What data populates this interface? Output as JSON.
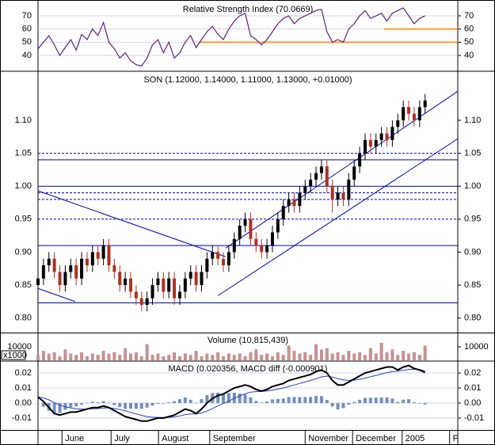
{
  "chart_data": [
    {
      "type": "line",
      "title": "Relative Strength Index (70.0669)",
      "color": "#602080",
      "values": [
        45,
        50,
        55,
        48,
        40,
        46,
        52,
        44,
        56,
        52,
        60,
        55,
        65,
        50,
        45,
        38,
        42,
        36,
        33,
        32,
        38,
        48,
        52,
        42,
        50,
        38,
        42,
        50,
        55,
        46,
        52,
        58,
        62,
        56,
        52,
        60,
        66,
        70,
        72,
        55,
        52,
        48,
        52,
        58,
        64,
        68,
        70,
        64,
        68,
        70,
        72,
        74,
        75,
        58,
        50,
        52,
        50,
        60,
        64,
        70,
        74,
        68,
        70,
        72,
        66,
        72,
        74,
        76,
        70,
        64,
        68,
        70.0669
      ],
      "ylim": [
        29.2,
        80.2
      ],
      "yticks": [
        40,
        50,
        60,
        70
      ],
      "grid": true,
      "hlines": [
        {
          "value": 60,
          "from": 63.5,
          "color": "#ff9933"
        },
        {
          "value": 50,
          "from": 29.5,
          "color": "#ff9933"
        }
      ]
    },
    {
      "type": "candlestick",
      "title": "SON (1.12000, 1.14000, 1.11000, 1.13000, +0.01000)",
      "up_color": "#000000",
      "down_color": "#b03020",
      "open": [
        0.85,
        0.86,
        0.88,
        0.89,
        0.87,
        0.85,
        0.87,
        0.88,
        0.86,
        0.89,
        0.88,
        0.9,
        0.89,
        0.91,
        0.88,
        0.87,
        0.85,
        0.86,
        0.84,
        0.83,
        0.82,
        0.83,
        0.85,
        0.86,
        0.84,
        0.86,
        0.83,
        0.84,
        0.86,
        0.87,
        0.85,
        0.87,
        0.89,
        0.9,
        0.89,
        0.88,
        0.9,
        0.92,
        0.94,
        0.95,
        0.92,
        0.91,
        0.9,
        0.91,
        0.93,
        0.95,
        0.97,
        0.98,
        0.97,
        0.99,
        1.0,
        1.01,
        1.02,
        1.03,
        1.0,
        0.98,
        0.99,
        0.98,
        1.01,
        1.03,
        1.05,
        1.07,
        1.06,
        1.07,
        1.08,
        1.07,
        1.09,
        1.1,
        1.12,
        1.11,
        1.1,
        1.12
      ],
      "high": [
        0.87,
        0.89,
        0.9,
        0.9,
        0.88,
        0.88,
        0.89,
        0.89,
        0.9,
        0.9,
        0.91,
        0.91,
        0.92,
        0.92,
        0.89,
        0.88,
        0.87,
        0.87,
        0.85,
        0.84,
        0.84,
        0.86,
        0.87,
        0.87,
        0.87,
        0.87,
        0.85,
        0.87,
        0.88,
        0.88,
        0.88,
        0.9,
        0.91,
        0.91,
        0.9,
        0.91,
        0.93,
        0.95,
        0.96,
        0.96,
        0.93,
        0.92,
        0.92,
        0.94,
        0.96,
        0.98,
        0.99,
        0.99,
        1.0,
        1.01,
        1.02,
        1.03,
        1.04,
        1.04,
        1.01,
        1.0,
        1.0,
        1.02,
        1.04,
        1.06,
        1.08,
        1.08,
        1.08,
        1.09,
        1.09,
        1.1,
        1.11,
        1.13,
        1.13,
        1.12,
        1.13,
        1.14
      ],
      "low": [
        0.84,
        0.85,
        0.87,
        0.86,
        0.84,
        0.84,
        0.86,
        0.85,
        0.85,
        0.87,
        0.87,
        0.88,
        0.88,
        0.87,
        0.86,
        0.84,
        0.84,
        0.83,
        0.82,
        0.81,
        0.81,
        0.82,
        0.84,
        0.83,
        0.83,
        0.82,
        0.82,
        0.83,
        0.85,
        0.84,
        0.84,
        0.86,
        0.88,
        0.88,
        0.87,
        0.87,
        0.89,
        0.91,
        0.93,
        0.91,
        0.9,
        0.89,
        0.89,
        0.9,
        0.92,
        0.94,
        0.96,
        0.96,
        0.96,
        0.98,
        0.99,
        1.0,
        1.01,
        0.99,
        0.96,
        0.97,
        0.97,
        0.97,
        1.0,
        1.02,
        1.04,
        1.05,
        1.05,
        1.06,
        1.06,
        1.06,
        1.08,
        1.09,
        1.1,
        1.09,
        1.09,
        1.11
      ],
      "close": [
        0.86,
        0.88,
        0.89,
        0.87,
        0.85,
        0.87,
        0.88,
        0.86,
        0.89,
        0.88,
        0.9,
        0.89,
        0.91,
        0.88,
        0.87,
        0.85,
        0.86,
        0.84,
        0.83,
        0.82,
        0.83,
        0.85,
        0.86,
        0.84,
        0.86,
        0.83,
        0.84,
        0.86,
        0.87,
        0.85,
        0.87,
        0.89,
        0.9,
        0.89,
        0.88,
        0.9,
        0.92,
        0.94,
        0.95,
        0.92,
        0.91,
        0.9,
        0.91,
        0.93,
        0.95,
        0.97,
        0.98,
        0.97,
        0.99,
        1.0,
        1.01,
        1.02,
        1.03,
        1.0,
        0.98,
        0.99,
        0.98,
        1.01,
        1.03,
        1.05,
        1.07,
        1.06,
        1.07,
        1.08,
        1.07,
        1.09,
        1.1,
        1.12,
        1.11,
        1.1,
        1.12,
        1.13
      ],
      "ylim": [
        0.778,
        1.172
      ],
      "yticks": [
        {
          "value": 0.8,
          "label": "0.80"
        },
        0.85,
        {
          "value": 0.9,
          "label": "0.90"
        },
        0.95,
        {
          "value": 1,
          "label": "1.00"
        },
        1.05,
        {
          "value": 1.1,
          "label": "1.10"
        }
      ],
      "grid": false,
      "line_color": "#0000c0",
      "hlines": [
        {
          "value": 1.05,
          "dashed": true
        },
        {
          "value": 1.04,
          "dashed": false
        },
        {
          "value": 1.0,
          "dashed": false
        },
        {
          "value": 0.99,
          "dashed": true
        },
        {
          "value": 0.98,
          "dashed": true
        },
        {
          "value": 0.95,
          "dashed": true
        },
        {
          "value": 0.91,
          "dashed": false
        },
        {
          "value": 0.823,
          "dashed": false
        }
      ],
      "trendlines": [
        {
          "x": [
            0,
            34.4
          ],
          "y": [
            0.993,
            0.893
          ]
        },
        {
          "x": [
            0,
            6.8
          ],
          "y": [
            0.845,
            0.825
          ]
        },
        {
          "x": [
            34.4,
            77
          ],
          "y": [
            0.906,
            1.144
          ]
        },
        {
          "x": [
            33,
            77
          ],
          "y": [
            0.834,
            1.072
          ]
        }
      ]
    },
    {
      "type": "bar",
      "title": "Volume (10,815,439)",
      "unit": "x1000",
      "color": "#c89090",
      "values": [
        4000,
        7000,
        5000,
        6000,
        3000,
        8000,
        5000,
        4000,
        6000,
        3000,
        5000,
        4000,
        7000,
        5000,
        6000,
        4000,
        9000,
        5000,
        6000,
        3000,
        12000,
        4000,
        5000,
        3000,
        4000,
        6000,
        3000,
        5000,
        4000,
        7000,
        3000,
        5000,
        4000,
        6000,
        3000,
        5000,
        4000,
        5000,
        3000,
        6000,
        8000,
        4000,
        5000,
        3000,
        6000,
        4000,
        11000,
        7000,
        5000,
        6000,
        4000,
        12000,
        8000,
        9000,
        5000,
        6000,
        4000,
        7000,
        5000,
        6000,
        4000,
        9000,
        5000,
        13000,
        6000,
        8000,
        4000,
        7000,
        5000,
        6000,
        4000,
        10815.439
      ],
      "ylim": [
        0,
        20000
      ],
      "yticks": [
        10000
      ],
      "grid": false
    },
    {
      "type": "macd",
      "title": "MACD (0.020356, MACD diff (-0.000901)",
      "macd": {
        "color": "#000000",
        "values": [
          0.004,
          0.001,
          -0.003,
          -0.007,
          -0.008,
          -0.007,
          -0.006,
          -0.006,
          -0.005,
          -0.004,
          -0.003,
          -0.003,
          -0.002,
          -0.003,
          -0.005,
          -0.007,
          -0.009,
          -0.01,
          -0.011,
          -0.012,
          -0.012,
          -0.011,
          -0.01,
          -0.01,
          -0.009,
          -0.008,
          -0.006,
          -0.004,
          -0.005,
          -0.007,
          -0.004,
          0.0,
          0.003,
          0.005,
          0.006,
          0.008,
          0.01,
          0.011,
          0.012,
          0.011,
          0.009,
          0.008,
          0.009,
          0.011,
          0.012,
          0.013,
          0.015,
          0.016,
          0.017,
          0.018,
          0.019,
          0.021,
          0.022,
          0.02,
          0.015,
          0.012,
          0.012,
          0.014,
          0.016,
          0.018,
          0.02,
          0.021,
          0.022,
          0.023,
          0.024,
          0.024,
          0.022,
          0.024,
          0.025,
          0.023,
          0.022,
          0.020356
        ]
      },
      "signal": {
        "color": "#2040c0",
        "values": [
          0.004,
          0.0034,
          0.0021,
          0.0003,
          -0.0014,
          -0.0025,
          -0.0032,
          -0.0038,
          -0.004,
          -0.004,
          -0.0038,
          -0.0036,
          -0.0033,
          -0.0032,
          -0.0036,
          -0.0043,
          -0.0052,
          -0.0062,
          -0.0072,
          -0.0082,
          -0.009,
          -0.0094,
          -0.0095,
          -0.0096,
          -0.0095,
          -0.0092,
          -0.0086,
          -0.0077,
          -0.0072,
          -0.0072,
          -0.0066,
          -0.0053,
          -0.0036,
          -0.0019,
          -0.0003,
          0.0014,
          0.0031,
          0.0047,
          0.0062,
          0.0072,
          0.0076,
          0.0077,
          0.008,
          0.0086,
          0.0093,
          0.01,
          0.011,
          0.012,
          0.013,
          0.014,
          0.015,
          0.0162,
          0.0174,
          0.0179,
          0.0173,
          0.0162,
          0.0154,
          0.0151,
          0.0153,
          0.0158,
          0.0166,
          0.0175,
          0.0184,
          0.0193,
          0.0202,
          0.021,
          0.0212,
          0.0218,
          0.0224,
          0.0225,
          0.0224,
          0.021257
        ]
      },
      "hist": {
        "color": "#7090c0",
        "values": [
          0.0,
          -0.0024,
          -0.0051,
          -0.0073,
          -0.0066,
          -0.0045,
          -0.0028,
          -0.0022,
          -0.001,
          0.0,
          0.0008,
          0.0006,
          0.0013,
          0.0002,
          -0.0014,
          -0.0027,
          -0.0038,
          -0.0038,
          -0.0038,
          -0.0038,
          -0.003,
          -0.0016,
          -0.0005,
          -0.0004,
          0.0005,
          0.0012,
          0.0026,
          0.0037,
          0.0022,
          0.0002,
          0.0026,
          0.0053,
          0.0066,
          0.0069,
          0.0063,
          0.0066,
          0.0069,
          0.0063,
          0.0058,
          0.0038,
          0.0014,
          0.0003,
          0.001,
          0.0024,
          0.0027,
          0.003,
          0.004,
          0.004,
          0.004,
          0.004,
          0.004,
          0.0048,
          0.0046,
          0.0021,
          -0.0023,
          -0.0042,
          -0.0034,
          -0.0011,
          0.0007,
          0.0022,
          0.0034,
          0.0035,
          0.0036,
          0.0037,
          0.0038,
          0.003,
          0.0008,
          0.0022,
          0.0026,
          0.0005,
          -0.0004,
          -0.000901
        ]
      },
      "ylim": [
        -0.0179,
        0.0274
      ],
      "yticks": [
        0.02,
        0.01,
        {
          "value": 0,
          "label": "0.00"
        },
        -0.01
      ],
      "grid": true,
      "xlim": [
        0,
        77
      ],
      "xticks": [
        {
          "value": 4.4,
          "label": "June"
        },
        {
          "value": 13.4,
          "label": "July"
        },
        {
          "value": 22.1,
          "label": "August"
        },
        {
          "value": 31.5,
          "label": "September"
        },
        {
          "value": 49,
          "label": "November"
        },
        {
          "value": 57.7,
          "label": "December"
        },
        {
          "value": 66.8,
          "label": "2005"
        },
        {
          "value": 75.5,
          "label": "F"
        }
      ]
    }
  ]
}
